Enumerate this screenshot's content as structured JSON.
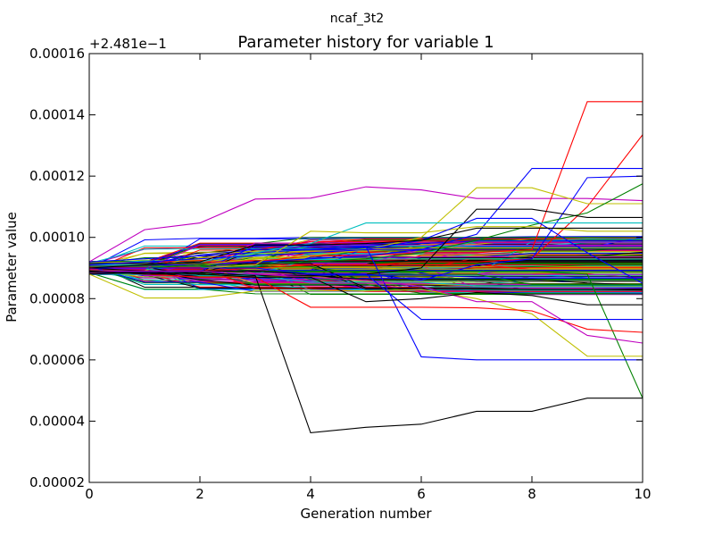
{
  "chart_data": {
    "type": "line",
    "suptitle": "ncaf_3t2",
    "title": "Parameter history for variable 1",
    "xlabel": "Generation number",
    "ylabel": "Parameter value",
    "offset_text": "+2.481e−1",
    "xlim": [
      0,
      10
    ],
    "ylim": [
      2e-05,
      0.00016
    ],
    "x_ticks": [
      0,
      2,
      4,
      6,
      8,
      10
    ],
    "y_ticks": [
      2e-05,
      4e-05,
      6e-05,
      8e-05,
      0.0001,
      0.00012,
      0.00014,
      0.00016
    ],
    "x_tick_labels": [
      "0",
      "2",
      "4",
      "6",
      "8",
      "10"
    ],
    "y_tick_labels": [
      "0.00002",
      "0.00004",
      "0.00006",
      "0.00008",
      "0.00010",
      "0.00012",
      "0.00014",
      "0.00016"
    ],
    "grid": false,
    "x": [
      0,
      1,
      2,
      3,
      4,
      5,
      6,
      7,
      8,
      9,
      10
    ],
    "colors": [
      "#0000ff",
      "#008000",
      "#ff0000",
      "#00bfbf",
      "#bf00bf",
      "#bfbf00",
      "#000000"
    ],
    "highlight_series": [
      {
        "color": "#bf00bf",
        "values": [
          9.2e-05,
          0.0001025,
          0.0001047,
          0.0001125,
          0.0001128,
          0.0001165,
          0.0001155,
          0.0001127,
          0.0001127,
          0.0001127,
          0.000112
        ]
      },
      {
        "color": "#000000",
        "values": [
          8.8e-05,
          8.85e-05,
          8.85e-05,
          8.75e-05,
          3.62e-05,
          3.8e-05,
          3.9e-05,
          4.32e-05,
          4.32e-05,
          4.75e-05,
          4.75e-05
        ]
      },
      {
        "color": "#ff0000",
        "values": [
          9.1e-05,
          9.1e-05,
          9.2e-05,
          9.2e-05,
          9.4e-05,
          9.4e-05,
          9.5e-05,
          9.5e-05,
          9.6e-05,
          0.0001443,
          0.0001443
        ]
      },
      {
        "color": "#ff0000",
        "values": [
          8.9e-05,
          8.9e-05,
          8.9e-05,
          9e-05,
          9.1e-05,
          9.1e-05,
          9.2e-05,
          9.2e-05,
          9.3e-05,
          0.00011,
          0.0001335
        ]
      },
      {
        "color": "#0000ff",
        "values": [
          9.1e-05,
          9.1e-05,
          9.1e-05,
          9.2e-05,
          9.3e-05,
          9.4e-05,
          9.6e-05,
          0.000101,
          0.0001225,
          0.0001225,
          0.0001225
        ]
      },
      {
        "color": "#0000ff",
        "values": [
          8.9e-05,
          8.9e-05,
          8.9e-05,
          8.9e-05,
          8.8e-05,
          8.8e-05,
          8.6e-05,
          9.1e-05,
          9.3e-05,
          0.0001195,
          0.00012
        ]
      },
      {
        "color": "#bfbf00",
        "values": [
          9e-05,
          9e-05,
          9.1e-05,
          9.3e-05,
          9.4e-05,
          9.6e-05,
          0.0001,
          0.0001162,
          0.0001162,
          0.000111,
          0.000111
        ]
      },
      {
        "color": "#008000",
        "values": [
          9e-05,
          9e-05,
          9.1e-05,
          9.1e-05,
          9.2e-05,
          9.3e-05,
          9.5e-05,
          9.9e-05,
          0.000104,
          0.000108,
          0.0001175
        ]
      },
      {
        "color": "#008000",
        "values": [
          8.9e-05,
          8.9e-05,
          8.9e-05,
          8.9e-05,
          8.9e-05,
          8.9e-05,
          8.9e-05,
          8.9e-05,
          8.9e-05,
          8.8e-05,
          4.75e-05
        ]
      },
      {
        "color": "#0000ff",
        "values": [
          9.2e-05,
          9.3e-05,
          9.4e-05,
          9.5e-05,
          9.6e-05,
          9.7e-05,
          6.1e-05,
          6e-05,
          6e-05,
          6e-05,
          6e-05
        ]
      },
      {
        "color": "#bfbf00",
        "values": [
          8.8e-05,
          8.02e-05,
          8.02e-05,
          8.25e-05,
          8.25e-05,
          8.25e-05,
          8.3e-05,
          8e-05,
          7.5e-05,
          6.12e-05,
          6.12e-05
        ]
      },
      {
        "color": "#000000",
        "values": [
          9e-05,
          8.9e-05,
          8.9e-05,
          8.9e-05,
          8.8e-05,
          8.8e-05,
          9e-05,
          0.0001092,
          0.0001092,
          0.0001065,
          0.0001065
        ]
      },
      {
        "color": "#00bfbf",
        "values": [
          9.1e-05,
          9.1e-05,
          9.2e-05,
          9.5e-05,
          9.8e-05,
          0.0001047,
          0.0001047,
          0.0001047,
          0.0001047,
          0.0001047,
          0.0001047
        ]
      },
      {
        "color": "#ff0000",
        "values": [
          8.9e-05,
          8.8e-05,
          8.7e-05,
          8.7e-05,
          7.72e-05,
          7.72e-05,
          7.72e-05,
          7.7e-05,
          7.6e-05,
          7e-05,
          6.9e-05
        ]
      },
      {
        "color": "#bf00bf",
        "values": [
          8.9e-05,
          8.9e-05,
          8.9e-05,
          8.8e-05,
          8.7e-05,
          8.6e-05,
          8.4e-05,
          7.9e-05,
          7.9e-05,
          6.8e-05,
          6.55e-05
        ]
      },
      {
        "color": "#bfbf00",
        "values": [
          9e-05,
          9e-05,
          9e-05,
          9.1e-05,
          0.000102,
          0.0001015,
          0.0001015,
          0.0001035,
          0.0001035,
          0.000102,
          0.000102
        ]
      },
      {
        "color": "#0000ff",
        "values": [
          9e-05,
          9e-05,
          9e-05,
          9e-05,
          8.8e-05,
          8.8e-05,
          7.32e-05,
          7.32e-05,
          7.32e-05,
          7.32e-05,
          7.32e-05
        ]
      },
      {
        "color": "#0000ff",
        "values": [
          9.1e-05,
          9.2e-05,
          9.3e-05,
          9.4e-05,
          9.5e-05,
          9.6e-05,
          9.9e-05,
          0.0001062,
          0.0001062,
          9.5e-05,
          8.5e-05
        ]
      },
      {
        "color": "#000000",
        "values": [
          8.9e-05,
          8.8e-05,
          8.8e-05,
          8.7e-05,
          8.7e-05,
          7.9e-05,
          8e-05,
          8.2e-05,
          8.1e-05,
          7.8e-05,
          7.8e-05
        ]
      },
      {
        "color": "#000000",
        "values": [
          9e-05,
          9.1e-05,
          9.2e-05,
          9.75e-05,
          9.75e-05,
          9.8e-05,
          9.9e-05,
          0.000103,
          0.000103,
          0.000103,
          0.000103
        ]
      }
    ],
    "bundle": {
      "count": 240,
      "start_range": [
        8.78e-05,
        9.22e-05
      ],
      "drift_range": [
        8.12e-05,
        0.0001005
      ]
    }
  }
}
